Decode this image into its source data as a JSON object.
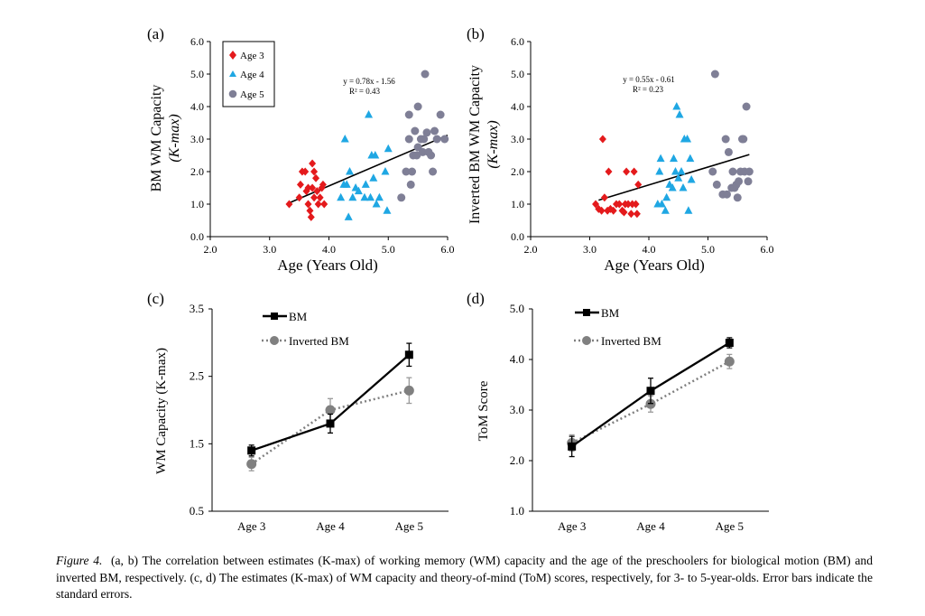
{
  "colors": {
    "age3": "#e41a1c",
    "age4": "#1fa7e3",
    "age5": "#7f7f96",
    "bm_line": "#000000",
    "inverted_line": "#808080"
  },
  "caption": {
    "label": "Figure 4.",
    "text": "(a, b) The correlation between estimates (K-max) of working memory (WM) capacity and the age of the preschoolers for biological motion (BM) and inverted BM, respectively. (c, d) The estimates (K-max) of WM capacity and theory-of-mind (ToM) scores, respectively, for 3- to 5-year-olds. Error bars indicate the standard errors."
  },
  "chart_data": [
    {
      "panel": "(a)",
      "type": "scatter",
      "ylabel_line1": "BM WM Capacity",
      "ylabel_line2": "(K-max)",
      "xlabel": "Age (Years Old)",
      "xlim": [
        2.0,
        6.0
      ],
      "ylim": [
        0.0,
        6.0
      ],
      "xticks": [
        "2.0",
        "3.0",
        "4.0",
        "5.0",
        "6.0"
      ],
      "yticks": [
        "0.0",
        "1.0",
        "2.0",
        "3.0",
        "4.0",
        "5.0",
        "6.0"
      ],
      "legend": [
        "Age 3",
        "Age 4",
        "Age 5"
      ],
      "legend_position": "top-left",
      "equation": "y = 0.78x - 1.56",
      "r_squared": "R² = 0.43",
      "trendline": {
        "slope": 0.78,
        "intercept": -1.56,
        "x_range": [
          3.3,
          6.0
        ]
      },
      "series": [
        {
          "name": "Age 3",
          "marker": "diamond",
          "points": [
            [
              3.33,
              1.0
            ],
            [
              3.5,
              1.2
            ],
            [
              3.52,
              1.6
            ],
            [
              3.55,
              2.0
            ],
            [
              3.6,
              2.0
            ],
            [
              3.62,
              1.4
            ],
            [
              3.65,
              1.5
            ],
            [
              3.65,
              1.0
            ],
            [
              3.68,
              0.8
            ],
            [
              3.7,
              0.6
            ],
            [
              3.72,
              2.25
            ],
            [
              3.72,
              1.5
            ],
            [
              3.75,
              2.0
            ],
            [
              3.75,
              1.2
            ],
            [
              3.78,
              1.8
            ],
            [
              3.8,
              1.4
            ],
            [
              3.82,
              1.0
            ],
            [
              3.85,
              1.2
            ],
            [
              3.88,
              1.5
            ],
            [
              3.9,
              1.6
            ],
            [
              3.92,
              1.0
            ]
          ]
        },
        {
          "name": "Age 4",
          "marker": "triangle",
          "points": [
            [
              4.2,
              1.2
            ],
            [
              4.25,
              1.6
            ],
            [
              4.27,
              3.0
            ],
            [
              4.3,
              1.6
            ],
            [
              4.33,
              0.6
            ],
            [
              4.35,
              2.0
            ],
            [
              4.4,
              1.2
            ],
            [
              4.45,
              1.5
            ],
            [
              4.5,
              1.4
            ],
            [
              4.6,
              1.2
            ],
            [
              4.62,
              1.6
            ],
            [
              4.67,
              3.75
            ],
            [
              4.7,
              1.2
            ],
            [
              4.72,
              2.5
            ],
            [
              4.75,
              1.8
            ],
            [
              4.78,
              2.5
            ],
            [
              4.8,
              1.0
            ],
            [
              4.85,
              1.2
            ],
            [
              4.95,
              2.0
            ],
            [
              4.98,
              0.8
            ],
            [
              5.0,
              2.7
            ]
          ]
        },
        {
          "name": "Age 5",
          "marker": "circle",
          "points": [
            [
              5.22,
              1.2
            ],
            [
              5.3,
              2.0
            ],
            [
              5.35,
              3.0
            ],
            [
              5.35,
              3.75
            ],
            [
              5.38,
              1.6
            ],
            [
              5.4,
              2.0
            ],
            [
              5.42,
              2.5
            ],
            [
              5.45,
              3.25
            ],
            [
              5.48,
              2.5
            ],
            [
              5.5,
              4.0
            ],
            [
              5.5,
              2.75
            ],
            [
              5.55,
              3.0
            ],
            [
              5.58,
              2.6
            ],
            [
              5.6,
              3.0
            ],
            [
              5.62,
              5.0
            ],
            [
              5.65,
              3.2
            ],
            [
              5.68,
              2.6
            ],
            [
              5.72,
              2.5
            ],
            [
              5.75,
              2.0
            ],
            [
              5.78,
              3.25
            ],
            [
              5.82,
              3.0
            ],
            [
              5.88,
              3.75
            ],
            [
              5.95,
              3.0
            ]
          ]
        }
      ]
    },
    {
      "panel": "(b)",
      "type": "scatter",
      "ylabel_line1": "Inverted BM WM Capacity",
      "ylabel_line2": "(K-max)",
      "xlabel": "Age (Years Old)",
      "xlim": [
        2.0,
        6.0
      ],
      "ylim": [
        0.0,
        6.0
      ],
      "xticks": [
        "2.0",
        "3.0",
        "4.0",
        "5.0",
        "6.0"
      ],
      "yticks": [
        "0.0",
        "1.0",
        "2.0",
        "3.0",
        "4.0",
        "5.0",
        "6.0"
      ],
      "equation": "y = 0.55x - 0.61",
      "r_squared": "R² = 0.23",
      "trendline": {
        "slope": 0.55,
        "intercept": -0.61,
        "x_range": [
          3.15,
          5.7
        ]
      },
      "series": [
        {
          "name": "Age 3",
          "marker": "diamond",
          "points": [
            [
              3.1,
              1.0
            ],
            [
              3.15,
              0.85
            ],
            [
              3.2,
              0.8
            ],
            [
              3.22,
              3.0
            ],
            [
              3.25,
              1.2
            ],
            [
              3.3,
              0.8
            ],
            [
              3.32,
              2.0
            ],
            [
              3.35,
              0.85
            ],
            [
              3.4,
              0.8
            ],
            [
              3.45,
              1.0
            ],
            [
              3.5,
              1.0
            ],
            [
              3.55,
              0.8
            ],
            [
              3.58,
              0.75
            ],
            [
              3.6,
              1.0
            ],
            [
              3.62,
              2.0
            ],
            [
              3.65,
              1.0
            ],
            [
              3.7,
              0.7
            ],
            [
              3.72,
              1.0
            ],
            [
              3.75,
              2.0
            ],
            [
              3.78,
              1.0
            ],
            [
              3.8,
              0.7
            ],
            [
              3.82,
              1.6
            ]
          ]
        },
        {
          "name": "Age 4",
          "marker": "triangle",
          "points": [
            [
              4.15,
              1.0
            ],
            [
              4.18,
              2.0
            ],
            [
              4.2,
              2.4
            ],
            [
              4.22,
              1.0
            ],
            [
              4.28,
              0.8
            ],
            [
              4.3,
              1.2
            ],
            [
              4.35,
              1.6
            ],
            [
              4.4,
              1.5
            ],
            [
              4.42,
              2.4
            ],
            [
              4.45,
              2.0
            ],
            [
              4.47,
              4.0
            ],
            [
              4.5,
              1.8
            ],
            [
              4.52,
              3.75
            ],
            [
              4.55,
              2.0
            ],
            [
              4.58,
              1.5
            ],
            [
              4.6,
              3.0
            ],
            [
              4.65,
              3.0
            ],
            [
              4.67,
              0.8
            ],
            [
              4.7,
              2.4
            ],
            [
              4.72,
              1.75
            ]
          ]
        },
        {
          "name": "Age 5",
          "marker": "circle",
          "points": [
            [
              5.08,
              2.0
            ],
            [
              5.12,
              5.0
            ],
            [
              5.15,
              1.6
            ],
            [
              5.25,
              1.3
            ],
            [
              5.3,
              3.0
            ],
            [
              5.32,
              1.3
            ],
            [
              5.35,
              2.6
            ],
            [
              5.4,
              1.5
            ],
            [
              5.42,
              2.0
            ],
            [
              5.45,
              1.5
            ],
            [
              5.48,
              1.6
            ],
            [
              5.5,
              1.2
            ],
            [
              5.52,
              1.7
            ],
            [
              5.55,
              2.0
            ],
            [
              5.58,
              3.0
            ],
            [
              5.6,
              3.0
            ],
            [
              5.62,
              2.0
            ],
            [
              5.65,
              4.0
            ],
            [
              5.68,
              1.7
            ],
            [
              5.7,
              2.0
            ]
          ]
        }
      ]
    },
    {
      "panel": "(c)",
      "type": "line",
      "ylabel": "WM Capacity (K-max)",
      "categories": [
        "Age 3",
        "Age 4",
        "Age 5"
      ],
      "ylim": [
        0.5,
        3.5
      ],
      "yticks": [
        "0.5",
        "1.5",
        "2.5",
        "3.5"
      ],
      "series": [
        {
          "name": "BM",
          "values": [
            1.4,
            1.8,
            2.82
          ],
          "errors": [
            0.08,
            0.14,
            0.17
          ]
        },
        {
          "name": "Inverted BM",
          "values": [
            1.2,
            2.0,
            2.29
          ],
          "errors": [
            0.1,
            0.17,
            0.19
          ]
        }
      ]
    },
    {
      "panel": "(d)",
      "type": "line",
      "ylabel": "ToM Score",
      "categories": [
        "Age 3",
        "Age 4",
        "Age 5"
      ],
      "ylim": [
        1.0,
        5.0
      ],
      "yticks": [
        "1.0",
        "2.0",
        "3.0",
        "4.0",
        "5.0"
      ],
      "series": [
        {
          "name": "BM",
          "values": [
            2.28,
            3.38,
            4.33
          ],
          "errors": [
            0.2,
            0.25,
            0.1
          ]
        },
        {
          "name": "Inverted BM",
          "values": [
            2.35,
            3.12,
            3.96
          ],
          "errors": [
            0.16,
            0.16,
            0.14
          ]
        }
      ]
    }
  ]
}
